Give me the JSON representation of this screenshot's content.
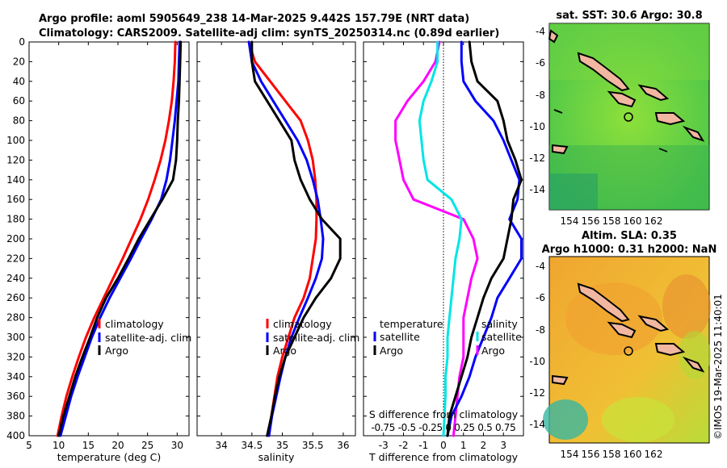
{
  "title_line1": "Argo profile: aoml 5905649_238 14-Mar-2025 9.442S 157.79E (NRT data)",
  "title_line2": "Climatology: CARS2009. Satellite-adj clim: synTS_20250314.nc (0.89d earlier)",
  "credit": "©IMOS 19-Mar-2025 11:40:01",
  "colors": {
    "climatology": "#ff0000",
    "satellite": "#0000ff",
    "argo": "#000000",
    "t_diff": "#ff00ff",
    "s_diff": "#00e5e5"
  },
  "depth_ticks": [
    0,
    20,
    40,
    60,
    80,
    100,
    120,
    140,
    160,
    180,
    200,
    220,
    240,
    260,
    280,
    300,
    320,
    340,
    360,
    380,
    400
  ],
  "chart_data": [
    {
      "id": "temperature",
      "type": "line",
      "xlabel": "temperature (deg C)",
      "ylabel": "depth",
      "xlim": [
        5,
        32
      ],
      "ylim": [
        400,
        0
      ],
      "xticks": [
        5,
        10,
        15,
        20,
        25,
        30
      ],
      "legend": [
        "climatology",
        "satellite-adj. clim",
        "Argo"
      ],
      "depth": [
        0,
        20,
        40,
        60,
        80,
        100,
        120,
        140,
        160,
        180,
        200,
        220,
        240,
        260,
        280,
        300,
        320,
        340,
        360,
        380,
        400
      ],
      "series": [
        {
          "name": "climatology",
          "color": "#ff0000",
          "values": [
            29.7,
            29.6,
            29.4,
            29.1,
            28.6,
            28.0,
            27.2,
            26.2,
            25.1,
            23.8,
            22.3,
            20.8,
            19.2,
            17.6,
            16.0,
            14.6,
            13.4,
            12.3,
            11.3,
            10.5,
            9.8
          ]
        },
        {
          "name": "satellite-adj. clim",
          "color": "#0000ff",
          "values": [
            30.4,
            30.3,
            30.2,
            29.9,
            29.6,
            29.2,
            28.8,
            28.2,
            27.3,
            25.7,
            23.9,
            22.2,
            20.4,
            18.6,
            17.0,
            15.6,
            14.4,
            13.2,
            12.1,
            11.2,
            10.3
          ]
        },
        {
          "name": "Argo",
          "color": "#000000",
          "values": [
            30.6,
            30.5,
            30.4,
            30.3,
            30.1,
            30.0,
            29.8,
            29.3,
            27.5,
            25.5,
            23.5,
            21.8,
            20.0,
            18.0,
            16.5,
            15.3,
            14.0,
            12.8,
            11.8,
            10.8,
            10.0
          ]
        }
      ]
    },
    {
      "id": "salinity",
      "type": "line",
      "xlabel": "salinity",
      "ylabel": "depth",
      "xlim": [
        33.6,
        36.2
      ],
      "ylim": [
        400,
        0
      ],
      "xticks": [
        34,
        34.5,
        35,
        35.5,
        36
      ],
      "legend": [
        "climatology",
        "satellite-adj. clim",
        "Argo"
      ],
      "depth": [
        0,
        20,
        40,
        60,
        80,
        100,
        120,
        140,
        160,
        180,
        200,
        220,
        240,
        260,
        280,
        300,
        320,
        340,
        360,
        380,
        400
      ],
      "series": [
        {
          "name": "climatology",
          "color": "#ff0000",
          "values": [
            34.45,
            34.55,
            34.8,
            35.05,
            35.3,
            35.42,
            35.5,
            35.54,
            35.56,
            35.56,
            35.55,
            35.5,
            35.45,
            35.35,
            35.2,
            35.1,
            35.0,
            34.92,
            34.87,
            34.82,
            34.78
          ]
        },
        {
          "name": "satellite-adj. clim",
          "color": "#0000ff",
          "values": [
            34.45,
            34.5,
            34.65,
            34.85,
            35.05,
            35.25,
            35.4,
            35.5,
            35.58,
            35.63,
            35.67,
            35.65,
            35.55,
            35.42,
            35.28,
            35.15,
            35.05,
            34.97,
            34.9,
            34.83,
            34.78
          ]
        },
        {
          "name": "Argo",
          "color": "#000000",
          "values": [
            34.5,
            34.5,
            34.55,
            34.75,
            34.95,
            35.15,
            35.2,
            35.3,
            35.45,
            35.65,
            35.95,
            35.95,
            35.8,
            35.55,
            35.35,
            35.2,
            35.05,
            34.95,
            34.88,
            34.82,
            34.75
          ]
        }
      ]
    },
    {
      "id": "difference",
      "type": "line",
      "xlabel": "T difference from climatology",
      "xlabel2": "S difference from climatology",
      "ylabel": "depth",
      "xlim": [
        -4,
        4
      ],
      "ylim": [
        400,
        0
      ],
      "xticks": [
        -3,
        -2,
        -1,
        0,
        1,
        2,
        3
      ],
      "s_ticks_label": "-0.75 -0.5 -0.25 0 0.25 0.5 0.75",
      "legend_left_header": "temperature",
      "legend_right_header": "salinity",
      "legend_left": [
        "satellite",
        "Argo"
      ],
      "legend_right": [
        "satellite",
        "Argo"
      ],
      "depth": [
        0,
        20,
        40,
        60,
        80,
        100,
        120,
        140,
        160,
        180,
        200,
        220,
        240,
        260,
        280,
        300,
        320,
        340,
        360,
        380,
        400
      ],
      "series": [
        {
          "name": "temperature satellite",
          "color": "#ff00ff",
          "values": [
            -0.2,
            -0.4,
            -1.0,
            -1.8,
            -2.4,
            -2.4,
            -2.2,
            -2.0,
            -1.5,
            1.0,
            1.5,
            1.7,
            1.4,
            1.2,
            1.0,
            1.0,
            1.0,
            0.8,
            0.7,
            0.6,
            0.5
          ]
        },
        {
          "name": "salinity satellite",
          "color": "#00e5e5",
          "values": [
            -0.3,
            -0.3,
            -0.6,
            -1.0,
            -1.2,
            -1.1,
            -1.0,
            -0.8,
            0.4,
            0.9,
            0.8,
            0.6,
            0.5,
            0.4,
            0.3,
            0.2,
            0.2,
            0.1,
            0.1,
            0.05,
            0.0
          ]
        },
        {
          "name": "temperature Argo",
          "color": "#0000ff",
          "values": [
            0.9,
            0.9,
            1.0,
            1.6,
            2.5,
            3.0,
            3.4,
            3.8,
            3.7,
            3.3,
            3.9,
            3.9,
            3.3,
            2.7,
            2.4,
            2.0,
            1.6,
            1.3,
            0.9,
            0.4,
            0.2
          ]
        },
        {
          "name": "salinity Argo",
          "color": "#000000",
          "values": [
            1.3,
            1.4,
            1.7,
            2.7,
            3.0,
            3.2,
            3.6,
            3.9,
            3.5,
            3.4,
            3.2,
            3.0,
            2.4,
            2.0,
            1.7,
            1.4,
            1.2,
            0.9,
            0.6,
            0.3,
            0.2
          ]
        }
      ]
    }
  ],
  "maps": [
    {
      "id": "sst",
      "title": "sat. SST: 30.6 Argo: 30.8",
      "xticks": [
        "154",
        "156",
        "158",
        "160",
        "162"
      ],
      "yticks": [
        "-4",
        "-6",
        "-8",
        "-10",
        "-12",
        "-14"
      ]
    },
    {
      "id": "sla",
      "title": "Altim. SLA: 0.35",
      "title2": "Argo h1000: 0.31 h2000: NaN",
      "xticks": [
        "154",
        "156",
        "158",
        "160",
        "162"
      ],
      "yticks": [
        "-4",
        "-6",
        "-8",
        "-10",
        "-12",
        "-14"
      ]
    }
  ]
}
